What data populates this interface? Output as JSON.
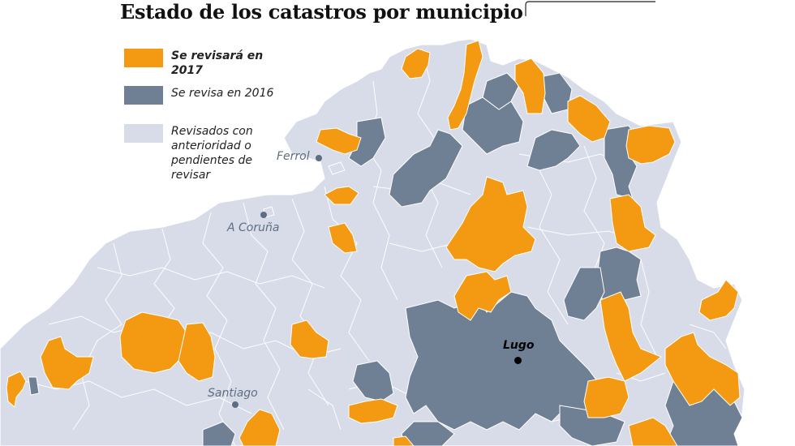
{
  "title": "Estado de los catastros por municipio",
  "colors": {
    "background_land": "#d8dce8",
    "border": "#ffffff",
    "revision_2017": "#f39a12",
    "revision_2016": "#6f7f94",
    "city_label": "#5d6e82"
  },
  "legend": [
    {
      "label": "Se revisará en 2017",
      "color": "#f39a12"
    },
    {
      "label": "Se revisa en 2016",
      "color": "#6f7f94"
    },
    {
      "label": "Revisados con anterioridad o pendientes de revisar",
      "color": "#d8dce8"
    }
  ],
  "cities": {
    "ferrol": "Ferrol",
    "coruna": "A Coruña",
    "santiago": "Santiago",
    "lugo": "Lugo"
  }
}
